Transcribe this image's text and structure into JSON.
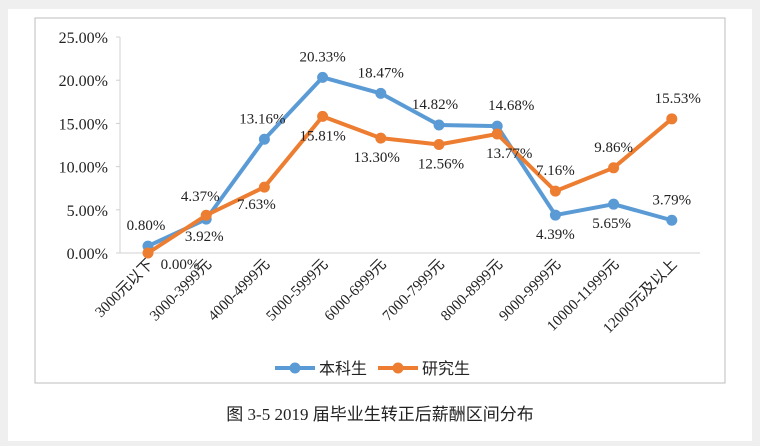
{
  "caption": "图 3-5   2019 届毕业生转正后薪酬区间分布",
  "chart_data": {
    "type": "line",
    "title": "",
    "xlabel": "",
    "ylabel": "",
    "ylim": [
      0,
      25
    ],
    "ytick_labels": [
      "0.00%",
      "5.00%",
      "10.00%",
      "15.00%",
      "20.00%",
      "25.00%"
    ],
    "yticks": [
      0,
      5,
      10,
      15,
      20,
      25
    ],
    "grid": false,
    "legend_position": "bottom",
    "categories": [
      "3000元以下",
      "3000-3999元",
      "4000-4999元",
      "5000-5999元",
      "6000-6999元",
      "7000-7999元",
      "8000-8999元",
      "9000-9999元",
      "10000-11999元",
      "12000元及以上"
    ],
    "series": [
      {
        "name": "本科生",
        "color": "#5b9bd5",
        "values": [
          0.8,
          3.92,
          13.16,
          20.33,
          18.47,
          14.82,
          14.68,
          4.39,
          5.65,
          3.79
        ],
        "labels": [
          "0.80%",
          "3.92%",
          "13.16%",
          "20.33%",
          "18.47%",
          "14.82%",
          "14.68%",
          "4.39%",
          "5.65%",
          "3.79%"
        ]
      },
      {
        "name": "研究生",
        "color": "#ed7d31",
        "values": [
          0.0,
          4.37,
          7.63,
          15.81,
          13.3,
          12.56,
          13.77,
          7.16,
          9.86,
          15.53
        ],
        "labels": [
          "0.00%",
          "4.37%",
          "7.63%",
          "15.81%",
          "13.30%",
          "12.56%",
          "13.77%",
          "7.16%",
          "9.86%",
          "15.53%"
        ]
      }
    ]
  }
}
